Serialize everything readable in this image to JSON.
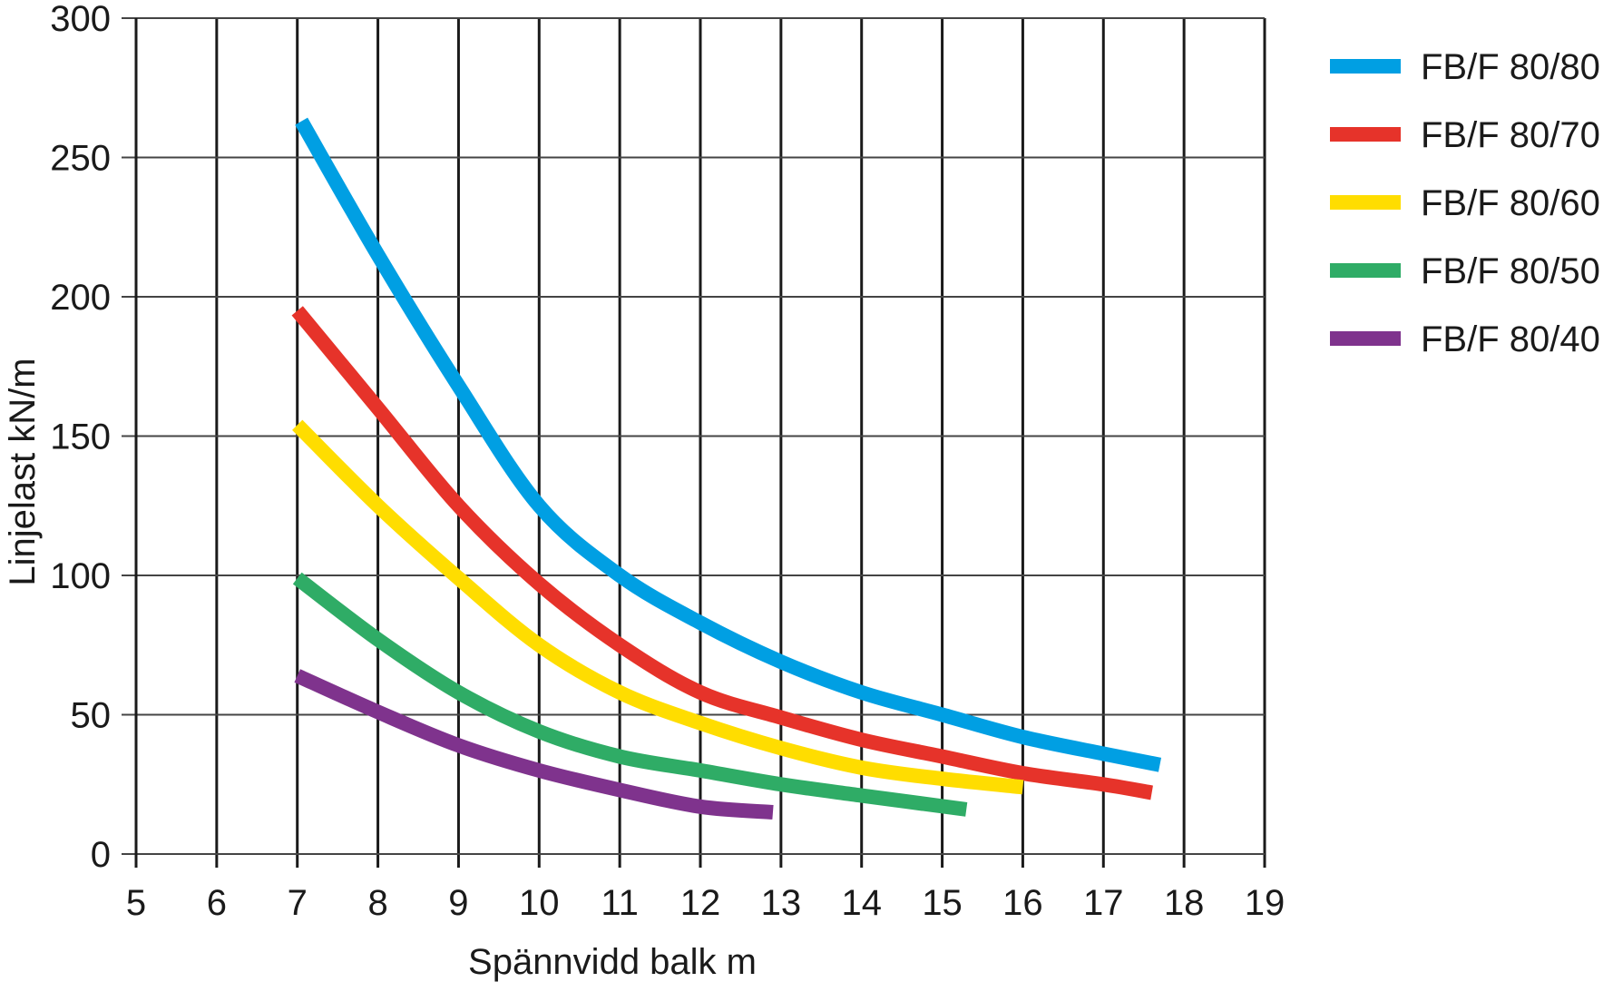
{
  "chart_data": {
    "type": "line",
    "title": "",
    "xlabel": "Spännvidd balk m",
    "ylabel": "Linjelast kN/m",
    "xlim": [
      5,
      19
    ],
    "ylim": [
      0,
      300
    ],
    "x_ticks": [
      "5",
      "6",
      "7",
      "8",
      "9",
      "10",
      "11",
      "12",
      "13",
      "14",
      "15",
      "16",
      "17",
      "18",
      "19"
    ],
    "y_ticks": [
      "0",
      "50",
      "100",
      "150",
      "200",
      "250",
      "300"
    ],
    "grid": true,
    "legend_position": "right",
    "series": [
      {
        "name": "FB/F 80/80",
        "color": "#009fe3",
        "x": [
          7.05,
          8,
          9,
          10,
          11,
          12,
          13,
          14,
          15,
          16,
          17,
          17.7
        ],
        "values": [
          263,
          215,
          168,
          125,
          100,
          83,
          69,
          58,
          50,
          42,
          36,
          32
        ]
      },
      {
        "name": "FB/F 80/70",
        "color": "#e6332a",
        "x": [
          7,
          8,
          9,
          10,
          11,
          12,
          13,
          14,
          15,
          16,
          17,
          17.6
        ],
        "values": [
          195,
          160,
          125,
          97,
          75,
          58,
          49,
          41,
          35,
          29,
          25,
          22
        ]
      },
      {
        "name": "FB/F 80/60",
        "color": "#ffdd00",
        "x": [
          7,
          8,
          9,
          10,
          11,
          12,
          13,
          14,
          15,
          16
        ],
        "values": [
          154,
          125,
          99,
          75,
          58,
          47,
          38,
          31,
          27,
          24
        ]
      },
      {
        "name": "FB/F 80/50",
        "color": "#2fac66",
        "x": [
          7,
          8,
          9,
          10,
          11,
          12,
          13,
          14,
          15.3
        ],
        "values": [
          99,
          77,
          58,
          44,
          35,
          30,
          25,
          21,
          16
        ]
      },
      {
        "name": "FB/F 80/40",
        "color": "#7f338d",
        "x": [
          7,
          8,
          9,
          10,
          11,
          12,
          12.9
        ],
        "values": [
          64,
          51,
          39,
          30,
          23,
          17,
          15
        ]
      }
    ]
  },
  "legend": {
    "items": [
      {
        "label": "FB/F 80/80",
        "color": "#009fe3"
      },
      {
        "label": "FB/F 80/70",
        "color": "#e6332a"
      },
      {
        "label": "FB/F 80/60",
        "color": "#ffdd00"
      },
      {
        "label": "FB/F 80/50",
        "color": "#2fac66"
      },
      {
        "label": "FB/F 80/40",
        "color": "#7f338d"
      }
    ]
  },
  "axes": {
    "x_title": "Spännvidd balk m",
    "y_title": "Linjelast kN/m"
  }
}
